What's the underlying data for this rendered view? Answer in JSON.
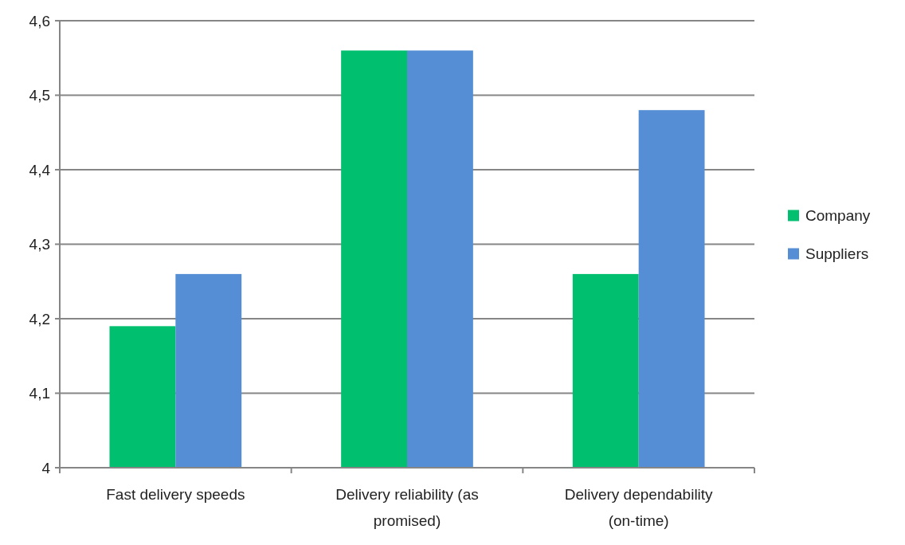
{
  "chart_data": {
    "type": "bar",
    "categories": [
      "Fast delivery speeds",
      "Delivery reliability (as promised)",
      "Delivery dependability (on-time)"
    ],
    "series": [
      {
        "name": "Company",
        "color": "#00bf6f",
        "values": [
          4.19,
          4.56,
          4.26
        ]
      },
      {
        "name": "Suppliers",
        "color": "#558ed5",
        "values": [
          4.26,
          4.56,
          4.48
        ]
      }
    ],
    "ylim": [
      4,
      4.6
    ],
    "yticks": [
      4,
      {
        "value": 4.1,
        "label": "4,1"
      },
      {
        "value": 4.2,
        "label": "4,2"
      },
      {
        "value": 4.3,
        "label": "4,3"
      },
      {
        "value": 4.4,
        "label": "4,4"
      },
      {
        "value": 4.5,
        "label": "4,5"
      },
      {
        "value": 4.6,
        "label": "4,6"
      }
    ],
    "grid": "y",
    "legend": "right"
  }
}
